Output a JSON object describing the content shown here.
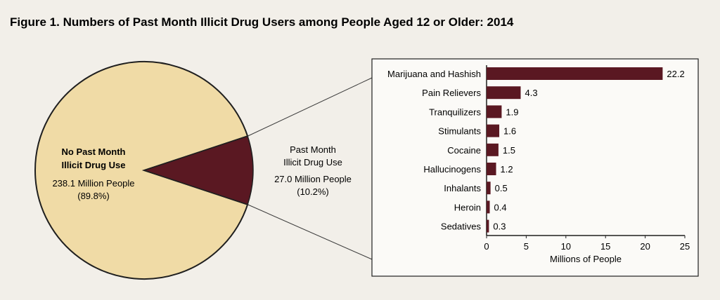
{
  "title": "Figure 1. Numbers of Past Month Illicit Drug Users among People Aged 12 or Older: 2014",
  "colors": {
    "pie_major": "#f0dba6",
    "pie_minor": "#5a1822",
    "bar": "#5a1822",
    "outline": "#1f1f1f",
    "panel_bg": "#fbfaf7"
  },
  "pie": {
    "slices": [
      {
        "label_line1": "No Past Month",
        "label_line2": "Illicit Drug Use",
        "amount": "238.1 Million People",
        "percent": "(89.8%)",
        "value": 238.1
      },
      {
        "label_line1": "Past Month",
        "label_line2": "Illicit Drug Use",
        "amount": "27.0 Million People",
        "percent": "(10.2%)",
        "value": 27.0
      }
    ]
  },
  "chart_data": [
    {
      "type": "pie",
      "categories": [
        "No Past Month Illicit Drug Use",
        "Past Month Illicit Drug Use"
      ],
      "values": [
        238.1,
        27.0
      ],
      "percent": [
        89.8,
        10.2
      ]
    },
    {
      "type": "bar",
      "orientation": "horizontal",
      "categories": [
        "Marijuana and Hashish",
        "Pain Relievers",
        "Tranquilizers",
        "Stimulants",
        "Cocaine",
        "Hallucinogens",
        "Inhalants",
        "Heroin",
        "Sedatives"
      ],
      "values": [
        22.2,
        4.3,
        1.9,
        1.6,
        1.5,
        1.2,
        0.5,
        0.4,
        0.3
      ],
      "value_labels": [
        "22.2",
        "4.3",
        "1.9",
        "1.6",
        "1.5",
        "1.2",
        "0.5",
        "0.4",
        "0.3"
      ],
      "xlabel": "Millions of People",
      "xlim": [
        0,
        25
      ],
      "xticks": [
        0,
        5,
        10,
        15,
        20,
        25
      ],
      "grid": false
    }
  ]
}
